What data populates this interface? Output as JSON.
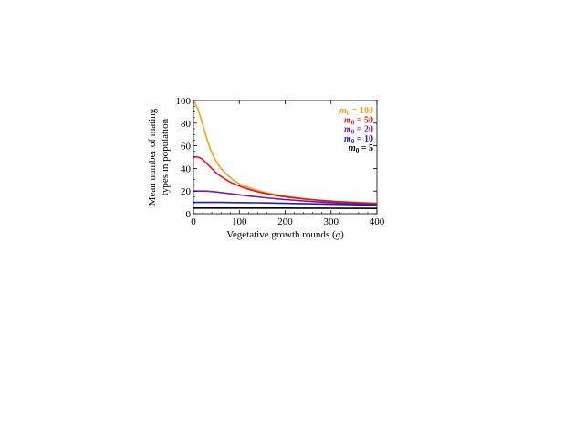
{
  "chart_data": {
    "type": "line",
    "xlabel": "Vegetative growth rounds (g)",
    "xlabel_main": "Vegetative growth rounds (",
    "xlabel_var": "g",
    "xlabel_close": ")",
    "ylabel_line1": "Mean number of mating",
    "ylabel_line2": "types in population",
    "xlim": [
      0,
      400
    ],
    "ylim": [
      0,
      100
    ],
    "xticks": [
      "0",
      "100",
      "200",
      "300",
      "400"
    ],
    "yticks": [
      "0",
      "20",
      "40",
      "60",
      "80",
      "100"
    ],
    "grid": false,
    "legend_position": "top-right",
    "x": [
      0,
      10,
      20,
      30,
      40,
      50,
      60,
      80,
      100,
      125,
      150,
      175,
      200,
      250,
      300,
      350,
      400
    ],
    "series": [
      {
        "name": "m0 = 100",
        "var": "m",
        "sub": "0",
        "suffix": " = 100",
        "color": "#f0a21b",
        "values": [
          100,
          92,
          79,
          65,
          54,
          46,
          40,
          32,
          26.5,
          22.5,
          19.5,
          17.2,
          15.5,
          13.0,
          11.3,
          10.2,
          9.3
        ]
      },
      {
        "name": "m0 = 50",
        "var": "m",
        "sub": "0",
        "suffix": " = 50",
        "color": "#e3141b",
        "values": [
          50,
          50,
          48,
          44,
          40,
          36,
          33,
          28,
          24.5,
          21,
          18.5,
          16.5,
          15,
          12.7,
          11,
          9.9,
          9.0
        ]
      },
      {
        "name": "m0 = 20",
        "var": "m",
        "sub": "0",
        "suffix": " = 20",
        "color": "#7a1a9c",
        "values": [
          20,
          20,
          20,
          19.9,
          19.6,
          19.2,
          18.7,
          17.7,
          16.7,
          15.5,
          14.4,
          13.4,
          12.5,
          11.0,
          9.8,
          8.8,
          8.0
        ]
      },
      {
        "name": "m0 = 10",
        "var": "m",
        "sub": "0",
        "suffix": " = 10",
        "color": "#1a1ad6",
        "values": [
          10,
          10,
          10,
          10,
          10,
          10,
          10,
          9.9,
          9.8,
          9.7,
          9.6,
          9.4,
          9.2,
          8.8,
          8.4,
          8.0,
          7.6
        ]
      },
      {
        "name": "m0 = 5",
        "var": "m",
        "sub": "0",
        "suffix": " = 5",
        "color": "#000000",
        "values": [
          5,
          5,
          5,
          5,
          5,
          5,
          5,
          5,
          5,
          5,
          5,
          5,
          4.95,
          4.9,
          4.85,
          4.8,
          4.7
        ]
      }
    ]
  }
}
